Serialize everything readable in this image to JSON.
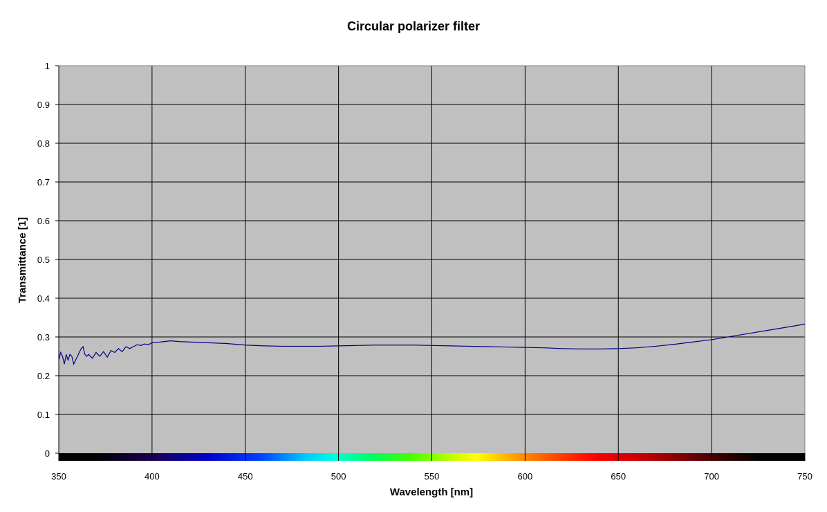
{
  "chart_data": {
    "type": "line",
    "title": "Circular polarizer filter",
    "xlabel": "Wavelength [nm]",
    "ylabel": "Transmittance [1]",
    "xlim": [
      350,
      750
    ],
    "ylim": [
      0,
      1
    ],
    "x_ticks": [
      350,
      400,
      450,
      500,
      550,
      600,
      650,
      700,
      750
    ],
    "y_ticks": [
      0,
      0.1,
      0.2,
      0.3,
      0.4,
      0.5,
      0.6,
      0.7,
      0.8,
      0.9,
      1
    ],
    "grid": true,
    "legend": "none",
    "colors": {
      "plot_background": "#c0c0c0",
      "series_line": "#000080",
      "grid": "#000000"
    },
    "spectrum_bar": true,
    "series": [
      {
        "x": [
          350,
          351,
          352,
          353,
          354,
          355,
          356,
          357,
          358,
          359,
          360,
          361,
          362,
          363,
          364,
          365,
          366,
          368,
          370,
          372,
          374,
          376,
          378,
          380,
          382,
          384,
          386,
          388,
          390,
          392,
          394,
          396,
          398,
          400,
          403,
          406,
          410,
          415,
          420,
          430,
          440,
          450,
          460,
          470,
          480,
          490,
          500,
          510,
          520,
          530,
          540,
          550,
          560,
          570,
          580,
          590,
          600,
          610,
          620,
          630,
          640,
          650,
          660,
          670,
          680,
          690,
          700,
          710,
          720,
          730,
          740,
          750
        ],
        "values": [
          0.24,
          0.26,
          0.25,
          0.23,
          0.255,
          0.24,
          0.255,
          0.25,
          0.23,
          0.24,
          0.25,
          0.26,
          0.27,
          0.275,
          0.255,
          0.25,
          0.255,
          0.245,
          0.26,
          0.25,
          0.262,
          0.248,
          0.265,
          0.26,
          0.27,
          0.262,
          0.275,
          0.27,
          0.275,
          0.28,
          0.278,
          0.282,
          0.28,
          0.285,
          0.286,
          0.288,
          0.29,
          0.288,
          0.287,
          0.285,
          0.283,
          0.279,
          0.277,
          0.276,
          0.276,
          0.276,
          0.277,
          0.278,
          0.279,
          0.279,
          0.279,
          0.278,
          0.277,
          0.276,
          0.275,
          0.274,
          0.273,
          0.272,
          0.27,
          0.269,
          0.269,
          0.27,
          0.272,
          0.276,
          0.281,
          0.287,
          0.293,
          0.301,
          0.309,
          0.317,
          0.325,
          0.333
        ]
      }
    ]
  }
}
